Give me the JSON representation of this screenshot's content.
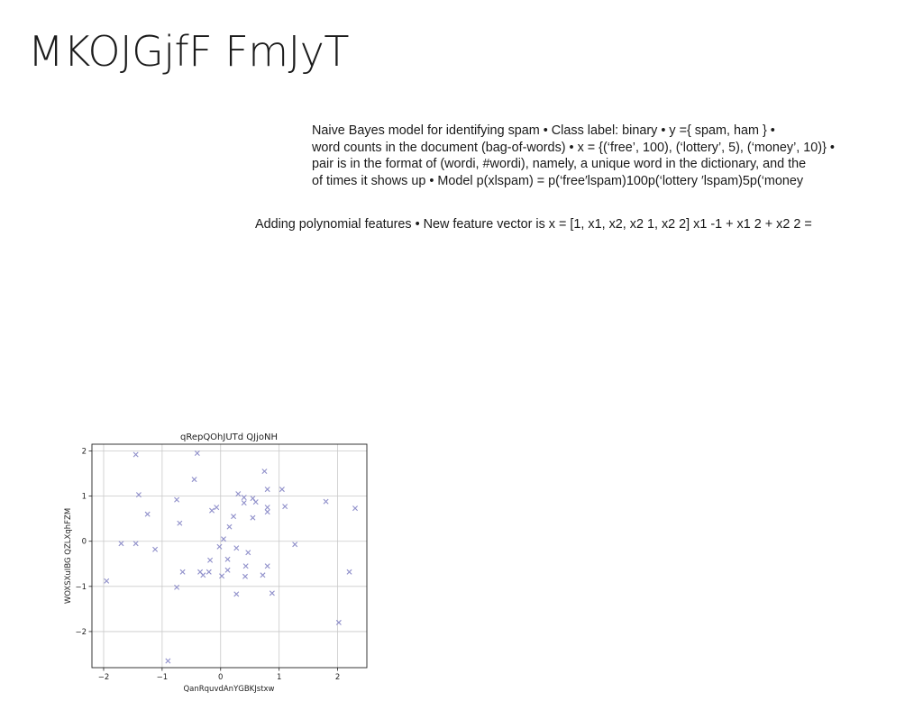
{
  "slide": {
    "title": "MKOJGjfF FmJyT"
  },
  "naive_bayes_text": {
    "lines": [
      "Naive Bayes model for identifying spam • Class label: binary • y ={ spam, ham } •",
      "word counts in the document (bag-of-words) • x = {(‘free’, 100), (‘lottery’, 5), (‘money’, 10)} •",
      "pair is in the format of (wordi, #wordi), namely, a unique word in the dictionary, and the",
      "of times it shows up • Model p(xlspam) = p(‘free′lspam)100p(‘lottery ′lspam)5p(‘money"
    ]
  },
  "polynomial_text": "Adding polynomial features • New feature vector is x = [1, x1, x2, x2 1, x2 2] x1 -1 + x1 2 + x2 2 =",
  "chart_data": {
    "type": "scatter",
    "title": "qRepQOhJUTd QJjoNH",
    "xlabel": "QanRquvdAnYGBKJstxw",
    "ylabel": "WOXSXuIBG QZLXqhFZM",
    "xlim": [
      -2.2,
      2.5
    ],
    "ylim": [
      -2.8,
      2.15
    ],
    "xticks": [
      -2,
      -1,
      0,
      1,
      2
    ],
    "yticks": [
      -2,
      -1,
      0,
      1,
      2
    ],
    "xtick_labels": [
      "−2",
      "−1",
      "0",
      "1",
      "2"
    ],
    "ytick_labels": [
      "−2",
      "−1",
      "0",
      "1",
      "2"
    ],
    "grid": true,
    "marker": "x",
    "color": "#8f8fca",
    "points": [
      {
        "x": -1.45,
        "y": 1.92
      },
      {
        "x": -0.4,
        "y": 1.95
      },
      {
        "x": -1.4,
        "y": 1.03
      },
      {
        "x": -0.45,
        "y": 1.37
      },
      {
        "x": 0.75,
        "y": 1.55
      },
      {
        "x": -1.25,
        "y": 0.6
      },
      {
        "x": -0.75,
        "y": 0.92
      },
      {
        "x": -0.7,
        "y": 0.4
      },
      {
        "x": -0.15,
        "y": 0.68
      },
      {
        "x": -0.07,
        "y": 0.75
      },
      {
        "x": 0.3,
        "y": 1.05
      },
      {
        "x": 0.4,
        "y": 0.97
      },
      {
        "x": 0.4,
        "y": 0.85
      },
      {
        "x": 0.55,
        "y": 0.95
      },
      {
        "x": 0.6,
        "y": 0.87
      },
      {
        "x": 0.8,
        "y": 1.15
      },
      {
        "x": 0.8,
        "y": 0.75
      },
      {
        "x": 0.8,
        "y": 0.65
      },
      {
        "x": 1.05,
        "y": 1.15
      },
      {
        "x": 1.1,
        "y": 0.77
      },
      {
        "x": 1.8,
        "y": 0.88
      },
      {
        "x": 2.3,
        "y": 0.73
      },
      {
        "x": 0.22,
        "y": 0.55
      },
      {
        "x": 0.55,
        "y": 0.52
      },
      {
        "x": 0.15,
        "y": 0.32
      },
      {
        "x": -1.7,
        "y": -0.05
      },
      {
        "x": -1.45,
        "y": -0.05
      },
      {
        "x": -1.12,
        "y": -0.18
      },
      {
        "x": 0.05,
        "y": 0.05
      },
      {
        "x": -0.02,
        "y": -0.12
      },
      {
        "x": 0.27,
        "y": -0.15
      },
      {
        "x": 0.47,
        "y": -0.25
      },
      {
        "x": 1.27,
        "y": -0.07
      },
      {
        "x": 0.12,
        "y": -0.4
      },
      {
        "x": -0.18,
        "y": -0.42
      },
      {
        "x": 0.43,
        "y": -0.55
      },
      {
        "x": 0.8,
        "y": -0.55
      },
      {
        "x": -0.65,
        "y": -0.68
      },
      {
        "x": -0.35,
        "y": -0.68
      },
      {
        "x": -0.3,
        "y": -0.75
      },
      {
        "x": -0.2,
        "y": -0.68
      },
      {
        "x": 0.12,
        "y": -0.64
      },
      {
        "x": 0.02,
        "y": -0.77
      },
      {
        "x": 0.42,
        "y": -0.78
      },
      {
        "x": 0.72,
        "y": -0.75
      },
      {
        "x": 2.2,
        "y": -0.68
      },
      {
        "x": -1.95,
        "y": -0.88
      },
      {
        "x": -0.75,
        "y": -1.02
      },
      {
        "x": 0.27,
        "y": -1.17
      },
      {
        "x": 0.88,
        "y": -1.15
      },
      {
        "x": 2.02,
        "y": -1.8
      },
      {
        "x": -0.9,
        "y": -2.65
      }
    ]
  }
}
